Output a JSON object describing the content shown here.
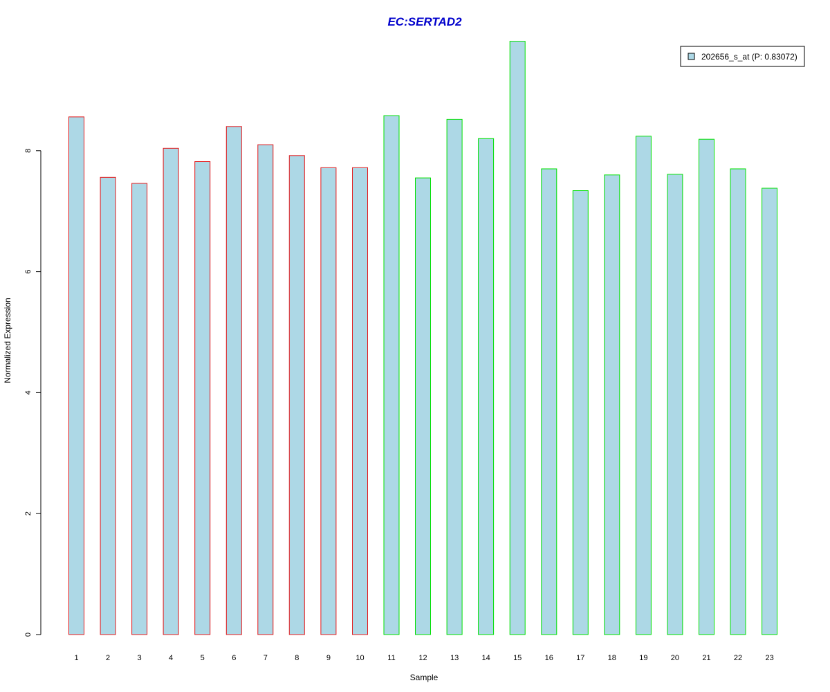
{
  "chart_data": {
    "type": "bar",
    "title": "EC:SERTAD2",
    "xlabel": "Sample",
    "ylabel": "Normalized Expression",
    "categories": [
      "1",
      "2",
      "3",
      "4",
      "5",
      "6",
      "7",
      "8",
      "9",
      "10",
      "11",
      "12",
      "13",
      "14",
      "15",
      "16",
      "17",
      "18",
      "19",
      "20",
      "21",
      "22",
      "23"
    ],
    "series": [
      {
        "name": "202656_s_at (P: 0.83072)",
        "values": [
          8.56,
          7.56,
          7.46,
          8.04,
          7.82,
          8.4,
          8.1,
          7.92,
          7.72,
          7.72,
          8.58,
          7.55,
          8.52,
          8.2,
          9.81,
          7.7,
          7.34,
          7.6,
          8.24,
          7.61,
          8.19,
          7.7,
          7.38
        ]
      }
    ],
    "bar_border_colors": [
      "#e31a1c",
      "#e31a1c",
      "#e31a1c",
      "#e31a1c",
      "#e31a1c",
      "#e31a1c",
      "#e31a1c",
      "#e31a1c",
      "#e31a1c",
      "#e31a1c",
      "#00e000",
      "#00e000",
      "#00e000",
      "#00e000",
      "#00e000",
      "#00e000",
      "#00e000",
      "#00e000",
      "#00e000",
      "#00e000",
      "#00e000",
      "#00e000",
      "#00e000"
    ],
    "bar_fill_color": "#add8e6",
    "title_color": "#0000cc",
    "yticks": [
      0,
      2,
      4,
      6,
      8
    ],
    "ylim": [
      0,
      9.81
    ],
    "grid": false,
    "legend_position": "top-right"
  }
}
